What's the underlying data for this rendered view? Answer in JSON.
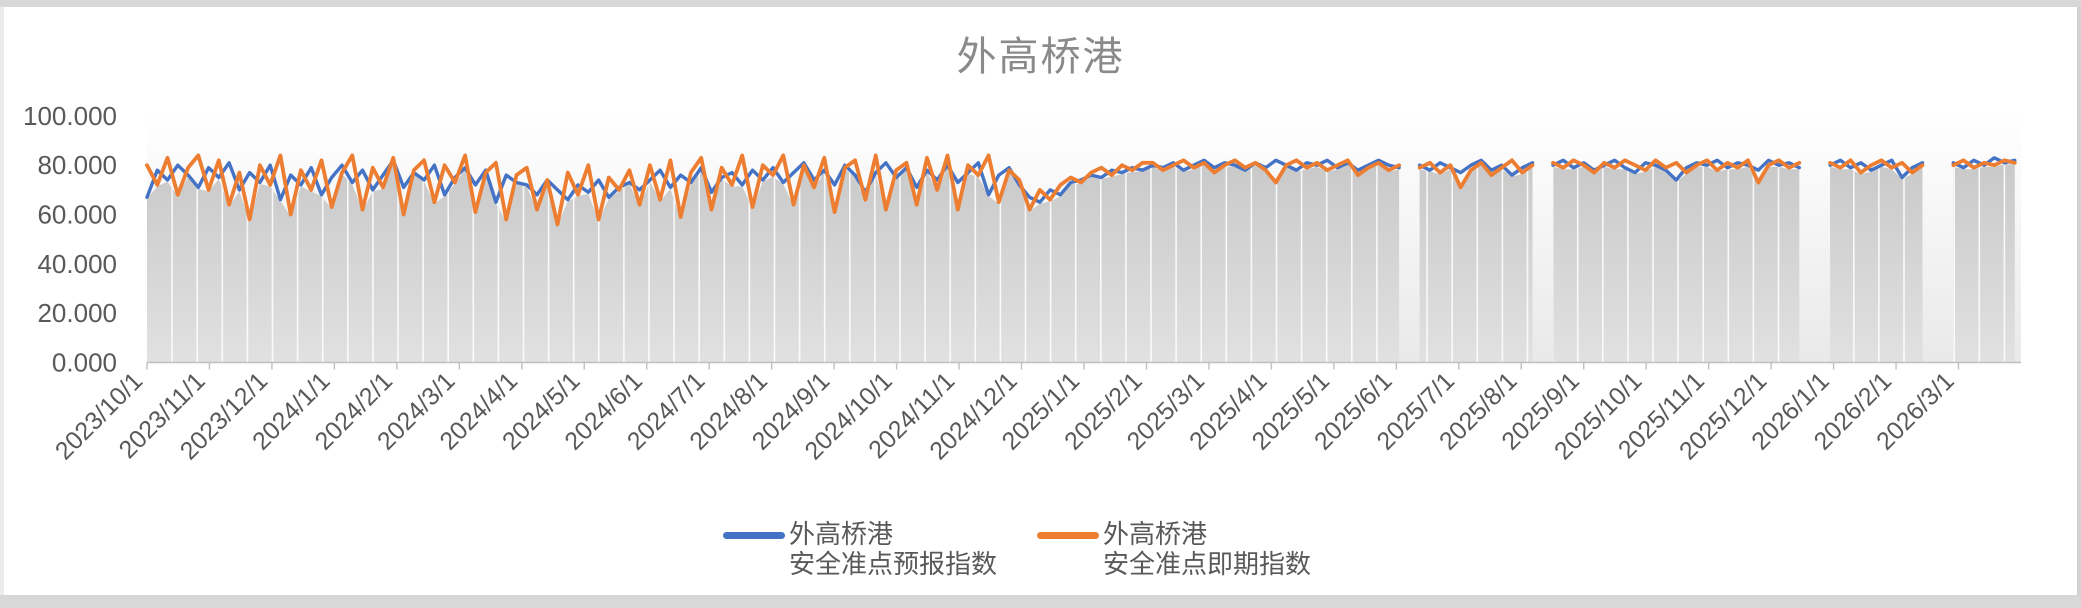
{
  "chart_data": {
    "type": "line",
    "title": "外高桥港",
    "x_axis": {
      "start_date": "2023/10/1",
      "end_date": "2026/4/1",
      "step_days": 5,
      "total_days": 913,
      "tick_labels": [
        "2023/10/1",
        "2023/11/1",
        "2023/12/1",
        "2024/1/1",
        "2024/2/1",
        "2024/3/1",
        "2024/4/1",
        "2024/5/1",
        "2024/6/1",
        "2024/7/1",
        "2024/8/1",
        "2024/9/1",
        "2024/10/1",
        "2024/11/1",
        "2024/12/1",
        "2025/1/1",
        "2025/2/1",
        "2025/3/1",
        "2025/4/1",
        "2025/5/1",
        "2025/6/1",
        "2025/7/1",
        "2025/8/1",
        "2025/9/1",
        "2025/10/1",
        "2025/11/1",
        "2025/12/1",
        "2026/1/1",
        "2026/2/1",
        "2026/3/1"
      ]
    },
    "y_axis": {
      "min": 0,
      "max": 100,
      "tick_step": 20,
      "tick_values": [
        100,
        80,
        60,
        40,
        20,
        0
      ],
      "tick_labels": [
        "100.000",
        "80.000",
        "60.000",
        "40.000",
        "20.000",
        "0.000"
      ]
    },
    "grid": "vertical-white-separators-in-area",
    "legend_position": "bottom-center",
    "area_fill_color_top": "#c9c9c9",
    "area_fill_color_bottom": "#e1e1e1",
    "series": [
      {
        "name": "外高桥港 安全准点预报指数",
        "color": "#4472C4",
        "values": [
          67,
          78,
          74,
          80,
          76,
          71,
          79,
          75,
          81,
          70,
          77,
          73,
          80,
          66,
          76,
          72,
          79,
          68,
          75,
          80,
          73,
          78,
          70,
          76,
          82,
          71,
          77,
          74,
          80,
          68,
          75,
          79,
          72,
          78,
          65,
          76,
          73,
          72,
          68,
          74,
          70,
          66,
          72,
          69,
          74,
          67,
          71,
          73,
          70,
          74,
          78,
          71,
          76,
          73,
          79,
          69,
          75,
          77,
          72,
          78,
          74,
          79,
          73,
          77,
          81,
          74,
          78,
          72,
          80,
          76,
          69,
          77,
          81,
          75,
          79,
          71,
          78,
          74,
          80,
          73,
          77,
          81,
          68,
          76,
          79,
          72,
          67,
          65,
          70,
          68,
          73,
          74,
          76,
          75,
          78,
          77,
          79,
          78,
          80,
          79,
          81,
          78,
          80,
          82,
          79,
          81,
          80,
          78,
          81,
          79,
          82,
          80,
          78,
          81,
          80,
          82,
          79,
          81,
          78,
          80,
          82,
          80,
          79,
          null,
          80,
          78,
          81,
          79,
          77,
          80,
          82,
          78,
          80,
          76,
          79,
          81,
          null,
          80,
          82,
          79,
          81,
          78,
          80,
          82,
          79,
          77,
          81,
          80,
          78,
          74,
          79,
          81,
          80,
          82,
          79,
          81,
          80,
          78,
          82,
          80,
          81,
          79,
          null,
          null,
          80,
          82,
          79,
          81,
          78,
          80,
          82,
          75,
          79,
          81,
          null,
          null,
          81,
          79,
          82,
          80,
          83,
          81,
          82
        ]
      },
      {
        "name": "外高桥港 安全准点即期指数",
        "color": "#ED7D31",
        "values": [
          80,
          72,
          83,
          68,
          79,
          84,
          70,
          82,
          64,
          77,
          58,
          80,
          72,
          84,
          60,
          78,
          70,
          82,
          63,
          77,
          84,
          62,
          79,
          71,
          83,
          60,
          78,
          82,
          65,
          80,
          73,
          84,
          61,
          77,
          81,
          58,
          76,
          79,
          62,
          74,
          56,
          77,
          68,
          80,
          58,
          75,
          70,
          78,
          64,
          80,
          66,
          82,
          59,
          77,
          83,
          62,
          79,
          72,
          84,
          63,
          80,
          76,
          84,
          64,
          80,
          71,
          83,
          61,
          79,
          82,
          66,
          84,
          62,
          78,
          81,
          64,
          83,
          70,
          84,
          62,
          80,
          76,
          84,
          65,
          78,
          74,
          62,
          70,
          66,
          72,
          75,
          73,
          77,
          79,
          76,
          80,
          78,
          81,
          81,
          78,
          80,
          82,
          79,
          81,
          77,
          80,
          82,
          79,
          81,
          78,
          73,
          80,
          82,
          79,
          81,
          78,
          80,
          82,
          76,
          79,
          81,
          78,
          80,
          null,
          79,
          81,
          77,
          80,
          71,
          78,
          81,
          76,
          79,
          82,
          77,
          80,
          null,
          81,
          79,
          82,
          80,
          77,
          81,
          79,
          82,
          80,
          78,
          82,
          79,
          81,
          77,
          80,
          82,
          78,
          81,
          79,
          82,
          73,
          80,
          82,
          79,
          81,
          null,
          null,
          81,
          79,
          82,
          77,
          80,
          82,
          79,
          81,
          77,
          80,
          null,
          null,
          80,
          82,
          79,
          81,
          80,
          82,
          81
        ]
      }
    ]
  },
  "legend": {
    "entries": [
      {
        "line1": "外高桥港",
        "line2": "安全准点预报指数"
      },
      {
        "line1": "外高桥港",
        "line2": "安全准点即期指数"
      }
    ]
  }
}
